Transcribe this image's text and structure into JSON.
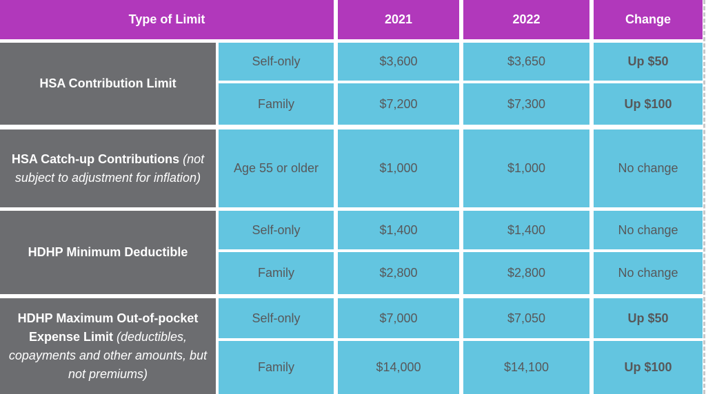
{
  "header": {
    "type_of_limit": "Type of Limit",
    "year_2021": "2021",
    "year_2022": "2022",
    "change": "Change"
  },
  "groups": [
    {
      "label": "HSA Contribution Limit",
      "label_note": "",
      "rows": [
        {
          "category": "Self-only",
          "v2021": "$3,600",
          "v2022": "$3,650",
          "change": "Up $50"
        },
        {
          "category": "Family",
          "v2021": "$7,200",
          "v2022": "$7,300",
          "change": "Up $100"
        }
      ]
    },
    {
      "label": "HSA Catch-up Contributions",
      "label_note": " (not subject to adjustment for inflation)",
      "rows": [
        {
          "category": "Age 55 or older",
          "v2021": "$1,000",
          "v2022": "$1,000",
          "change": "No change"
        }
      ]
    },
    {
      "label": "HDHP Minimum Deductible",
      "label_note": "",
      "rows": [
        {
          "category": "Self-only",
          "v2021": "$1,400",
          "v2022": "$1,400",
          "change": "No change"
        },
        {
          "category": "Family",
          "v2021": "$2,800",
          "v2022": "$2,800",
          "change": "No change"
        }
      ]
    },
    {
      "label": "HDHP Maximum Out-of-pocket Expense Limit",
      "label_note": " (deductibles, copayments and other amounts, but not premiums)",
      "rows": [
        {
          "category": "Self-only",
          "v2021": "$7,000",
          "v2022": "$7,050",
          "change": "Up $50"
        },
        {
          "category": "Family",
          "v2021": "$14,000",
          "v2022": "$14,100",
          "change": "Up $100"
        }
      ]
    }
  ],
  "chart_data": {
    "type": "table",
    "columns": [
      "Type of Limit",
      "",
      "2021",
      "2022",
      "Change"
    ],
    "rows": [
      [
        "HSA Contribution Limit",
        "Self-only",
        "$3,600",
        "$3,650",
        "Up $50"
      ],
      [
        "HSA Contribution Limit",
        "Family",
        "$7,200",
        "$7,300",
        "Up $100"
      ],
      [
        "HSA Catch-up Contributions (not subject to adjustment for inflation)",
        "Age 55 or older",
        "$1,000",
        "$1,000",
        "No change"
      ],
      [
        "HDHP Minimum Deductible",
        "Self-only",
        "$1,400",
        "$1,400",
        "No change"
      ],
      [
        "HDHP Minimum Deductible",
        "Family",
        "$2,800",
        "$2,800",
        "No change"
      ],
      [
        "HDHP Maximum Out-of-pocket Expense Limit (deductibles, copayments and other amounts, but not premiums)",
        "Self-only",
        "$7,000",
        "$7,050",
        "Up $50"
      ],
      [
        "HDHP Maximum Out-of-pocket Expense Limit (deductibles, copayments and other amounts, but not premiums)",
        "Family",
        "$14,000",
        "$14,100",
        "Up $100"
      ]
    ]
  },
  "colors": {
    "header_bg": "#b138bb",
    "cell_bg": "#63c5e0",
    "label_bg": "#6c6d70",
    "cell_text": "#57585a",
    "header_text": "#ffffff"
  }
}
